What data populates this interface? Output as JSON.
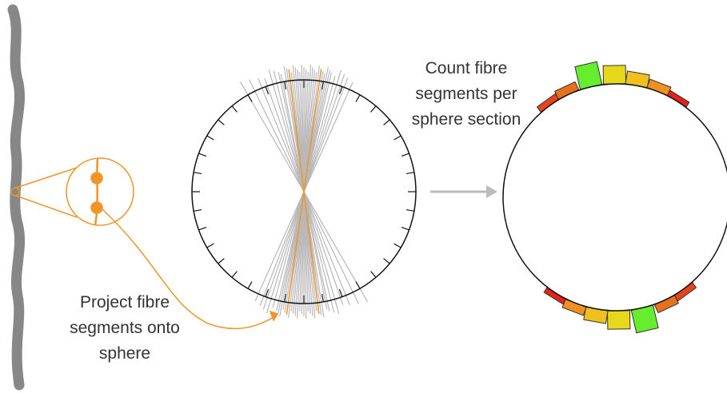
{
  "labels": {
    "project": [
      "Project fibre",
      "segments onto",
      "sphere"
    ],
    "count": [
      "Count fibre",
      "segments per",
      "sphere section"
    ]
  }
}
